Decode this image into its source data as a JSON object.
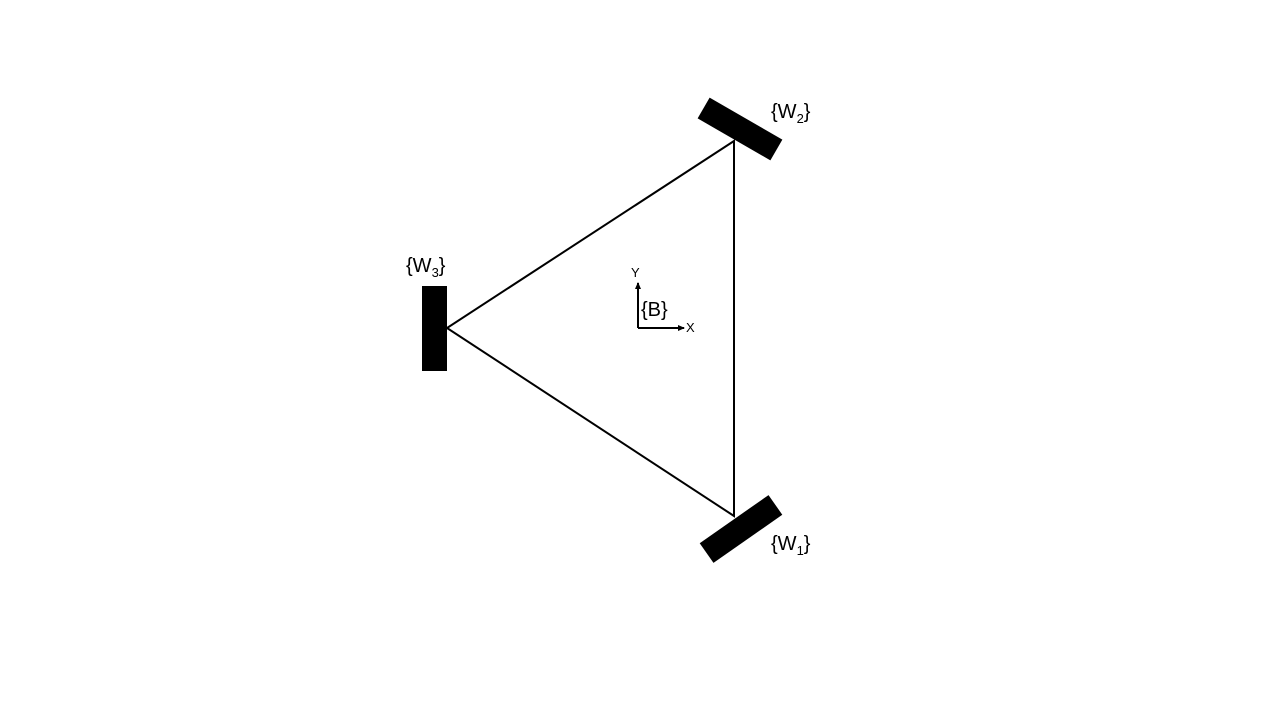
{
  "diagram": {
    "wheels": [
      {
        "id": "w1",
        "label": {
          "open": "{W",
          "sub": "1",
          "close": "}"
        }
      },
      {
        "id": "w2",
        "label": {
          "open": "{W",
          "sub": "2",
          "close": "}"
        }
      },
      {
        "id": "w3",
        "label": {
          "open": "{W",
          "sub": "3",
          "close": "}"
        }
      }
    ],
    "body_frame": {
      "label": "{B}",
      "x_axis": "X",
      "y_axis": "Y"
    },
    "colors": {
      "stroke": "#000000",
      "wheel_fill": "#000000",
      "background": "#ffffff"
    }
  }
}
